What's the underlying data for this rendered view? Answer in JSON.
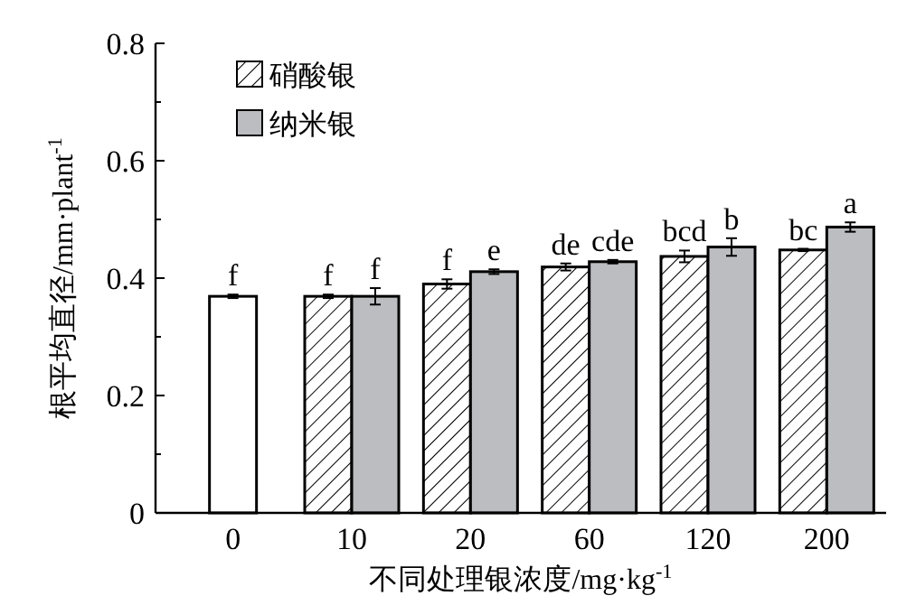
{
  "chart_data": {
    "type": "bar",
    "xlabel": "不同处理银浓度/mg·kg$^{-1}$",
    "ylabel": "根平均直径/mm·plant$^{-1}$",
    "categories": [
      "0",
      "10",
      "20",
      "60",
      "120",
      "200"
    ],
    "series": [
      {
        "color": "#ffffff",
        "values": [
          0.369,
          null,
          null,
          null,
          null,
          null
        ],
        "errors": [
          0.003,
          null,
          null,
          null,
          null,
          null
        ]
      },
      {
        "name": "硝酸银",
        "color": "#000000",
        "values": [
          null,
          0.369,
          0.39,
          0.419,
          0.437,
          0.448
        ],
        "errors": [
          null,
          0.003,
          0.008,
          0.006,
          0.01,
          0.002
        ]
      },
      {
        "name": "纳米银",
        "color": "#bcbdc0",
        "values": [
          null,
          0.369,
          0.411,
          0.428,
          0.453,
          0.487
        ],
        "errors": [
          null,
          0.014,
          0.004,
          0.003,
          0.015,
          0.008
        ]
      }
    ],
    "ylim": [
      0,
      0.8
    ],
    "yticks": [
      0,
      {
        "value": 0.1,
        "label": null
      },
      0.2,
      {
        "value": 0.3,
        "label": null
      },
      0.4,
      {
        "value": 0.5,
        "label": null
      },
      0.6,
      {
        "value": 0.7,
        "label": null
      },
      0.8
    ],
    "legend": "top left",
    "grid": false,
    "annotations": [
      {
        "text": "f",
        "x": "0",
        "y": 0.369
      },
      {
        "text": "f",
        "x": "10",
        "y": 0.369
      },
      {
        "text": "f",
        "x": "10",
        "y": 0.369
      },
      {
        "text": "f",
        "x": "20",
        "y": 0.39
      },
      {
        "text": "e",
        "x": "20",
        "y": 0.411
      },
      {
        "text": "de",
        "x": "60",
        "y": 0.419
      },
      {
        "text": "cde",
        "x": "60",
        "y": 0.428
      },
      {
        "text": "bcd",
        "x": "120",
        "y": 0.437
      },
      {
        "text": "b",
        "x": "120",
        "y": 0.453
      },
      {
        "text": "bc",
        "x": "200",
        "y": 0.448
      },
      {
        "text": "a",
        "x": "200",
        "y": 0.487
      }
    ]
  }
}
